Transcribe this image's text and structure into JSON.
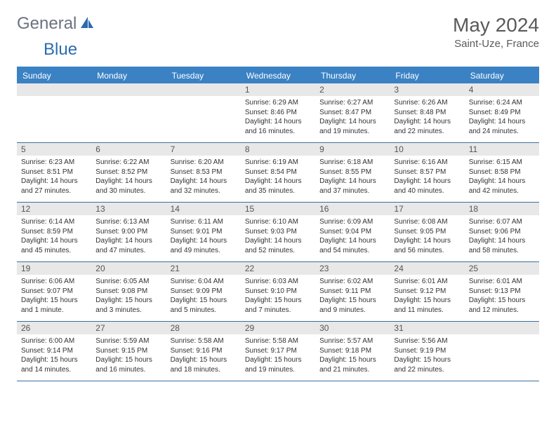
{
  "logo": {
    "part1": "General",
    "part2": "Blue"
  },
  "title": "May 2024",
  "location": "Saint-Uze, France",
  "colors": {
    "header_bg": "#3b82c4",
    "header_text": "#ffffff",
    "daynum_bg": "#e8e8e8",
    "row_border": "#3b6fa0",
    "logo_gray": "#6b7280",
    "logo_blue": "#2b6cb0",
    "title_color": "#5a5a5a"
  },
  "weekdays": [
    "Sunday",
    "Monday",
    "Tuesday",
    "Wednesday",
    "Thursday",
    "Friday",
    "Saturday"
  ],
  "weeks": [
    [
      null,
      null,
      null,
      {
        "n": "1",
        "sr": "6:29 AM",
        "ss": "8:46 PM",
        "dl": "14 hours and 16 minutes."
      },
      {
        "n": "2",
        "sr": "6:27 AM",
        "ss": "8:47 PM",
        "dl": "14 hours and 19 minutes."
      },
      {
        "n": "3",
        "sr": "6:26 AM",
        "ss": "8:48 PM",
        "dl": "14 hours and 22 minutes."
      },
      {
        "n": "4",
        "sr": "6:24 AM",
        "ss": "8:49 PM",
        "dl": "14 hours and 24 minutes."
      }
    ],
    [
      {
        "n": "5",
        "sr": "6:23 AM",
        "ss": "8:51 PM",
        "dl": "14 hours and 27 minutes."
      },
      {
        "n": "6",
        "sr": "6:22 AM",
        "ss": "8:52 PM",
        "dl": "14 hours and 30 minutes."
      },
      {
        "n": "7",
        "sr": "6:20 AM",
        "ss": "8:53 PM",
        "dl": "14 hours and 32 minutes."
      },
      {
        "n": "8",
        "sr": "6:19 AM",
        "ss": "8:54 PM",
        "dl": "14 hours and 35 minutes."
      },
      {
        "n": "9",
        "sr": "6:18 AM",
        "ss": "8:55 PM",
        "dl": "14 hours and 37 minutes."
      },
      {
        "n": "10",
        "sr": "6:16 AM",
        "ss": "8:57 PM",
        "dl": "14 hours and 40 minutes."
      },
      {
        "n": "11",
        "sr": "6:15 AM",
        "ss": "8:58 PM",
        "dl": "14 hours and 42 minutes."
      }
    ],
    [
      {
        "n": "12",
        "sr": "6:14 AM",
        "ss": "8:59 PM",
        "dl": "14 hours and 45 minutes."
      },
      {
        "n": "13",
        "sr": "6:13 AM",
        "ss": "9:00 PM",
        "dl": "14 hours and 47 minutes."
      },
      {
        "n": "14",
        "sr": "6:11 AM",
        "ss": "9:01 PM",
        "dl": "14 hours and 49 minutes."
      },
      {
        "n": "15",
        "sr": "6:10 AM",
        "ss": "9:03 PM",
        "dl": "14 hours and 52 minutes."
      },
      {
        "n": "16",
        "sr": "6:09 AM",
        "ss": "9:04 PM",
        "dl": "14 hours and 54 minutes."
      },
      {
        "n": "17",
        "sr": "6:08 AM",
        "ss": "9:05 PM",
        "dl": "14 hours and 56 minutes."
      },
      {
        "n": "18",
        "sr": "6:07 AM",
        "ss": "9:06 PM",
        "dl": "14 hours and 58 minutes."
      }
    ],
    [
      {
        "n": "19",
        "sr": "6:06 AM",
        "ss": "9:07 PM",
        "dl": "15 hours and 1 minute."
      },
      {
        "n": "20",
        "sr": "6:05 AM",
        "ss": "9:08 PM",
        "dl": "15 hours and 3 minutes."
      },
      {
        "n": "21",
        "sr": "6:04 AM",
        "ss": "9:09 PM",
        "dl": "15 hours and 5 minutes."
      },
      {
        "n": "22",
        "sr": "6:03 AM",
        "ss": "9:10 PM",
        "dl": "15 hours and 7 minutes."
      },
      {
        "n": "23",
        "sr": "6:02 AM",
        "ss": "9:11 PM",
        "dl": "15 hours and 9 minutes."
      },
      {
        "n": "24",
        "sr": "6:01 AM",
        "ss": "9:12 PM",
        "dl": "15 hours and 11 minutes."
      },
      {
        "n": "25",
        "sr": "6:01 AM",
        "ss": "9:13 PM",
        "dl": "15 hours and 12 minutes."
      }
    ],
    [
      {
        "n": "26",
        "sr": "6:00 AM",
        "ss": "9:14 PM",
        "dl": "15 hours and 14 minutes."
      },
      {
        "n": "27",
        "sr": "5:59 AM",
        "ss": "9:15 PM",
        "dl": "15 hours and 16 minutes."
      },
      {
        "n": "28",
        "sr": "5:58 AM",
        "ss": "9:16 PM",
        "dl": "15 hours and 18 minutes."
      },
      {
        "n": "29",
        "sr": "5:58 AM",
        "ss": "9:17 PM",
        "dl": "15 hours and 19 minutes."
      },
      {
        "n": "30",
        "sr": "5:57 AM",
        "ss": "9:18 PM",
        "dl": "15 hours and 21 minutes."
      },
      {
        "n": "31",
        "sr": "5:56 AM",
        "ss": "9:19 PM",
        "dl": "15 hours and 22 minutes."
      },
      null
    ]
  ],
  "labels": {
    "sunrise": "Sunrise:",
    "sunset": "Sunset:",
    "daylight": "Daylight:"
  }
}
